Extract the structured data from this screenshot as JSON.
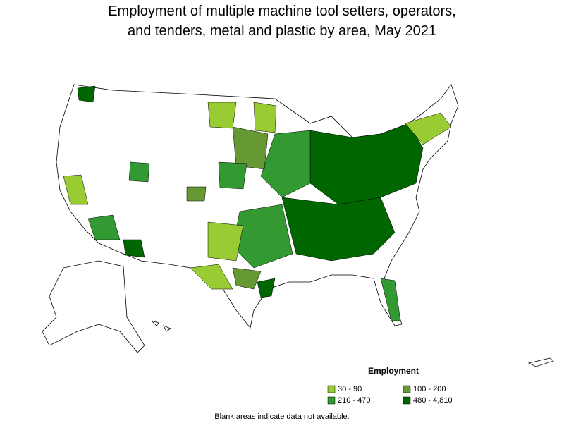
{
  "title_lines": [
    "Employment of multiple machine tool setters, operators,",
    "and tenders, metal and plastic by area, May 2021"
  ],
  "legend": {
    "title": "Employment",
    "items": [
      {
        "label": "30 - 90",
        "color": "#99cc33"
      },
      {
        "label": "100 - 200",
        "color": "#669933"
      },
      {
        "label": "210 - 470",
        "color": "#339933"
      },
      {
        "label": "480 - 4,810",
        "color": "#006600"
      }
    ]
  },
  "note": "Blank areas indicate data not available."
}
